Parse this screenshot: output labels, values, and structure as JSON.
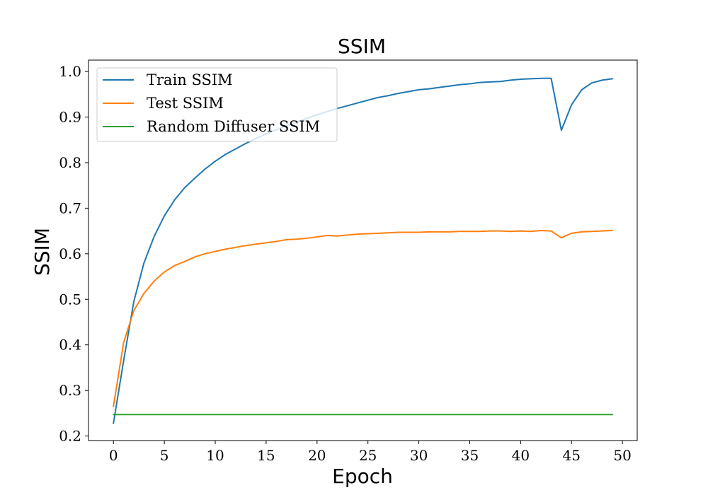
{
  "chart_data": {
    "type": "line",
    "title": "SSIM",
    "xlabel": "Epoch",
    "ylabel": "SSIM",
    "xlim": [
      -2.45,
      51.45
    ],
    "ylim": [
      0.19,
      1.025
    ],
    "xticks": [
      0,
      5,
      10,
      15,
      20,
      25,
      30,
      35,
      40,
      45,
      50
    ],
    "yticks": [
      0.2,
      0.3,
      0.4,
      0.5,
      0.6,
      0.7,
      0.8,
      0.9,
      1.0
    ],
    "grid": false,
    "legend_position": "top-left",
    "series": [
      {
        "name": "Train SSIM",
        "color": "#1f77b4",
        "x": [
          0,
          1,
          2,
          3,
          4,
          5,
          6,
          7,
          8,
          9,
          10,
          11,
          12,
          13,
          14,
          15,
          16,
          17,
          18,
          19,
          20,
          21,
          22,
          23,
          24,
          25,
          26,
          27,
          28,
          29,
          30,
          31,
          32,
          33,
          34,
          35,
          36,
          37,
          38,
          39,
          40,
          41,
          42,
          43,
          44,
          45,
          46,
          47,
          48,
          49
        ],
        "values": [
          0.228,
          0.365,
          0.495,
          0.58,
          0.638,
          0.683,
          0.718,
          0.745,
          0.766,
          0.786,
          0.803,
          0.818,
          0.83,
          0.842,
          0.853,
          0.863,
          0.872,
          0.881,
          0.889,
          0.897,
          0.905,
          0.912,
          0.919,
          0.925,
          0.931,
          0.937,
          0.943,
          0.947,
          0.952,
          0.956,
          0.96,
          0.962,
          0.965,
          0.968,
          0.971,
          0.973,
          0.976,
          0.977,
          0.978,
          0.981,
          0.983,
          0.984,
          0.985,
          0.985,
          0.871,
          0.927,
          0.96,
          0.975,
          0.981,
          0.984
        ]
      },
      {
        "name": "Test SSIM",
        "color": "#ff7f0e",
        "x": [
          0,
          1,
          2,
          3,
          4,
          5,
          6,
          7,
          8,
          9,
          10,
          11,
          12,
          13,
          14,
          15,
          16,
          17,
          18,
          19,
          20,
          21,
          22,
          23,
          24,
          25,
          26,
          27,
          28,
          29,
          30,
          31,
          32,
          33,
          34,
          35,
          36,
          37,
          38,
          39,
          40,
          41,
          42,
          43,
          44,
          45,
          46,
          47,
          48,
          49
        ],
        "values": [
          0.265,
          0.405,
          0.475,
          0.513,
          0.54,
          0.56,
          0.574,
          0.583,
          0.593,
          0.6,
          0.605,
          0.61,
          0.614,
          0.618,
          0.621,
          0.624,
          0.627,
          0.631,
          0.632,
          0.634,
          0.637,
          0.64,
          0.639,
          0.641,
          0.643,
          0.644,
          0.645,
          0.646,
          0.647,
          0.647,
          0.647,
          0.648,
          0.648,
          0.648,
          0.649,
          0.649,
          0.649,
          0.65,
          0.65,
          0.649,
          0.65,
          0.649,
          0.651,
          0.65,
          0.635,
          0.645,
          0.648,
          0.649,
          0.65,
          0.651
        ]
      },
      {
        "name": "Random Diffuser SSIM",
        "color": "#2ca02c",
        "x": [
          0,
          49
        ],
        "values": [
          0.247,
          0.247
        ]
      }
    ]
  }
}
